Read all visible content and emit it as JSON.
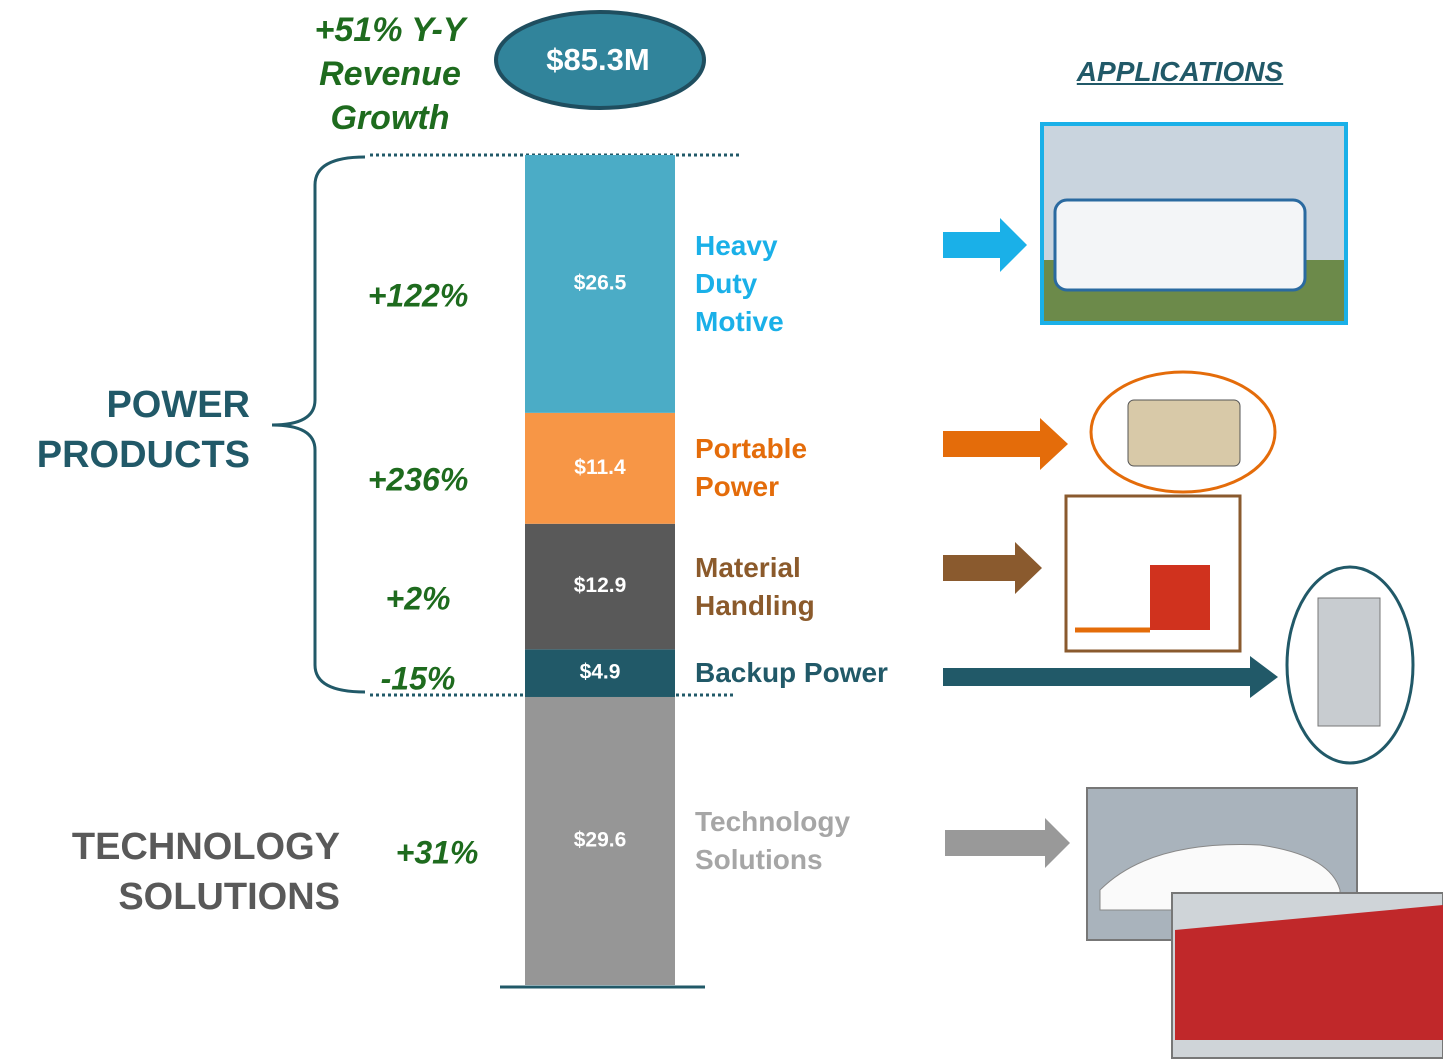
{
  "header": {
    "growth": "+51% Y-Y Revenue Growth",
    "total": "$85.3M",
    "applications": "APPLICATIONS"
  },
  "chart_data": {
    "type": "stacked_bar",
    "ylim": [
      0,
      85.3
    ],
    "groups": [
      "POWER PRODUCTS",
      "TECHNOLOGY SOLUTIONS"
    ],
    "series": [
      {
        "name": "Technology Solutions",
        "color": "#969696",
        "label_color": "#a6a6a6",
        "values": [
          29.6
        ],
        "value_labels": [
          "$29.6"
        ],
        "growth": "+31%"
      },
      {
        "name": "Backup Power",
        "color": "#215968",
        "label_color": "#215968",
        "values": [
          4.9
        ],
        "value_labels": [
          "$4.9"
        ],
        "growth": "-15%"
      },
      {
        "name": "Material Handling",
        "color": "#595959",
        "label_color": "#8b5a2b",
        "values": [
          12.9
        ],
        "value_labels": [
          "$12.9"
        ],
        "growth": "+2%"
      },
      {
        "name": "Portable Power",
        "color": "#f79646",
        "label_color": "#e46c0a",
        "values": [
          11.4
        ],
        "value_labels": [
          "$11.4"
        ],
        "growth": "+236%"
      },
      {
        "name": "Heavy Duty Motive",
        "color": "#4bacc6",
        "label_color": "#1ab0e8",
        "values": [
          26.5
        ],
        "value_labels": [
          "$26.5"
        ],
        "growth": "+122%"
      }
    ]
  }
}
